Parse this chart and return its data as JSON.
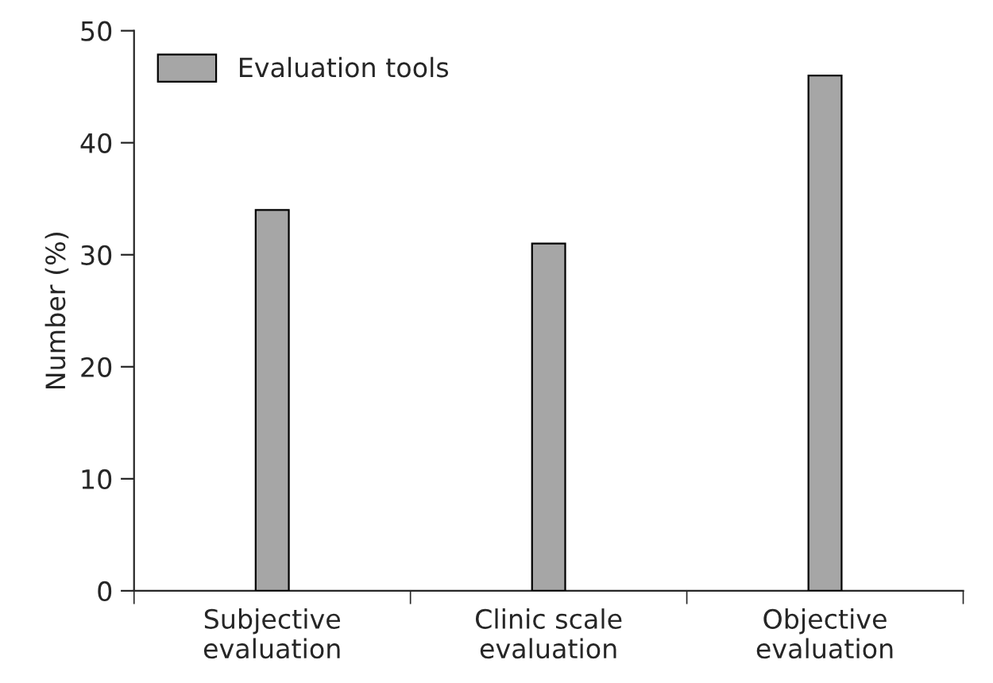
{
  "chart_data": {
    "type": "bar",
    "ylabel": "Number (%)",
    "categories": [
      "Subjective\nevaluation",
      "Clinic scale\nevaluation",
      "Objective\nevaluation"
    ],
    "series": [
      {
        "name": "Evaluation tools",
        "color": "#a6a6a6",
        "values": [
          34,
          31,
          46
        ]
      }
    ],
    "ylim": [
      0,
      50
    ],
    "yticks": [
      0,
      10,
      20,
      30,
      40,
      50
    ],
    "grid": false,
    "legend": "top left"
  }
}
